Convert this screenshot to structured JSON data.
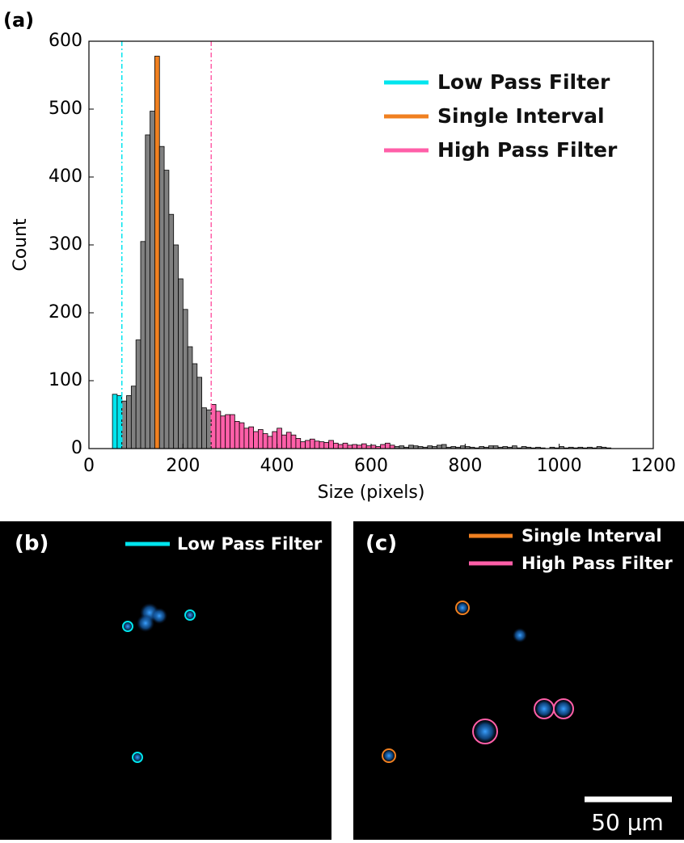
{
  "panel_label": "(a)",
  "chart_data": {
    "type": "histogram",
    "xlabel": "Size (pixels)",
    "ylabel": "Count",
    "bins": [
      50,
      60,
      70,
      80,
      90,
      100,
      110,
      120,
      130,
      140,
      150,
      160,
      170,
      180,
      190,
      200,
      210,
      220,
      230,
      240,
      250,
      260,
      270,
      280,
      290,
      300,
      310,
      320,
      330,
      340,
      350,
      360,
      370,
      380,
      390,
      400,
      410,
      420,
      430,
      440,
      450,
      460,
      470,
      480,
      490,
      500,
      510,
      520,
      530,
      540,
      550,
      560,
      570,
      580,
      590,
      600,
      610,
      620,
      630,
      640,
      650,
      660,
      670,
      680,
      690,
      700,
      710,
      720,
      730,
      740,
      750,
      760,
      770,
      780,
      790,
      800,
      810,
      820,
      830,
      840,
      850,
      860,
      870,
      880,
      890,
      900,
      910,
      920,
      930,
      940,
      950,
      960,
      970,
      980,
      990,
      1000,
      1010,
      1020,
      1030,
      1040,
      1050,
      1060,
      1070,
      1080,
      1090,
      1100,
      1110
    ],
    "counts": [
      80,
      78,
      70,
      78,
      92,
      160,
      305,
      462,
      497,
      578,
      445,
      410,
      345,
      300,
      250,
      205,
      150,
      125,
      105,
      60,
      57,
      65,
      55,
      48,
      50,
      50,
      40,
      38,
      30,
      32,
      25,
      28,
      22,
      18,
      25,
      30,
      20,
      24,
      20,
      15,
      10,
      12,
      14,
      11,
      10,
      9,
      12,
      8,
      6,
      8,
      5,
      6,
      5,
      7,
      4,
      5,
      3,
      6,
      8,
      5,
      3,
      4,
      2,
      5,
      4,
      3,
      2,
      4,
      3,
      5,
      6,
      2,
      3,
      2,
      4,
      3,
      2,
      1,
      3,
      2,
      4,
      4,
      2,
      3,
      2,
      4,
      1,
      3,
      2,
      1,
      2,
      1,
      0,
      2,
      1,
      3,
      1,
      2,
      1,
      2,
      1,
      2,
      1,
      3,
      2,
      1
    ],
    "colors": [
      "#00e5ee",
      "#00e5ee",
      "#808080",
      "#808080",
      "#808080",
      "#808080",
      "#808080",
      "#808080",
      "#808080",
      "#f08020",
      "#808080",
      "#808080",
      "#808080",
      "#808080",
      "#808080",
      "#808080",
      "#808080",
      "#808080",
      "#808080",
      "#808080",
      "#808080",
      "#ff5fa8",
      "#ff5fa8",
      "#ff5fa8",
      "#ff5fa8",
      "#ff5fa8",
      "#ff5fa8",
      "#ff5fa8",
      "#ff5fa8",
      "#ff5fa8",
      "#ff5fa8",
      "#ff5fa8",
      "#ff5fa8",
      "#ff5fa8",
      "#ff5fa8",
      "#ff5fa8",
      "#ff5fa8",
      "#ff5fa8",
      "#ff5fa8",
      "#ff5fa8",
      "#ff5fa8",
      "#ff5fa8",
      "#ff5fa8",
      "#ff5fa8",
      "#ff5fa8",
      "#ff5fa8",
      "#ff5fa8",
      "#ff5fa8",
      "#ff5fa8",
      "#ff5fa8",
      "#ff5fa8",
      "#ff5fa8",
      "#ff5fa8",
      "#ff5fa8",
      "#ff5fa8",
      "#ff5fa8",
      "#ff5fa8",
      "#ff5fa8",
      "#ff5fa8",
      "#ff5fa8",
      "#808080",
      "#808080",
      "#808080",
      "#808080",
      "#808080",
      "#808080",
      "#808080",
      "#808080",
      "#808080",
      "#808080",
      "#808080",
      "#808080",
      "#808080",
      "#808080",
      "#808080",
      "#808080",
      "#808080",
      "#808080",
      "#808080",
      "#808080",
      "#808080",
      "#808080",
      "#808080",
      "#808080",
      "#808080",
      "#808080",
      "#808080",
      "#808080",
      "#808080",
      "#808080",
      "#808080",
      "#808080",
      "#808080",
      "#808080",
      "#808080",
      "#808080",
      "#808080",
      "#808080",
      "#808080",
      "#808080",
      "#808080",
      "#808080",
      "#808080",
      "#808080",
      "#808080",
      "#808080"
    ],
    "thresholds": [
      {
        "value": 70,
        "color": "#00e5ee"
      },
      {
        "value": 260,
        "color": "#ff5fa8"
      }
    ],
    "legend": [
      {
        "name": "Low Pass Filter",
        "color": "#00e5ee"
      },
      {
        "name": "Single Interval",
        "color": "#f08020"
      },
      {
        "name": "High Pass Filter",
        "color": "#ff5fa8"
      }
    ],
    "xlim": [
      0,
      1200
    ],
    "xticks": [
      0,
      200,
      400,
      600,
      800,
      1000,
      1200
    ],
    "ylim": [
      0,
      600
    ],
    "yticks": [
      0,
      100,
      200,
      300,
      400,
      500,
      600
    ]
  },
  "panel_b": {
    "label": "(b)",
    "legend": "Low Pass Filter"
  },
  "panel_c": {
    "label": "(c)",
    "legend": [
      "Single Interval",
      "High Pass Filter"
    ],
    "scale_bar": "50 µm"
  }
}
